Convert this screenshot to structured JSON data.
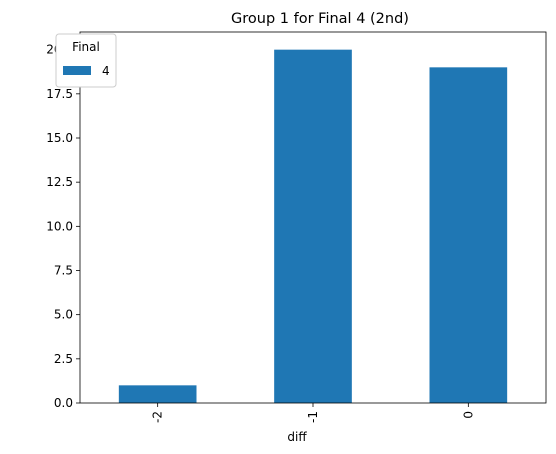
{
  "chart_data": {
    "type": "bar",
    "title": "Group 1 for Final 4 (2nd)",
    "xlabel": "diff",
    "ylabel": "",
    "categories": [
      "-2",
      "-1",
      "0"
    ],
    "series": [
      {
        "name": "4",
        "values": [
          1,
          20,
          19
        ],
        "color": "#1f77b4"
      }
    ],
    "ylim": [
      0,
      21
    ],
    "yticks": [
      0.0,
      2.5,
      5.0,
      7.5,
      10.0,
      12.5,
      15.0,
      17.5,
      20.0
    ],
    "ytick_labels": [
      "0.0",
      "2.5",
      "5.0",
      "7.5",
      "10.0",
      "12.5",
      "15.0",
      "17.5",
      "20.0"
    ],
    "xtick_rotation": 90,
    "grid": false,
    "legend": {
      "title": "Final",
      "placement": "top-left"
    }
  }
}
